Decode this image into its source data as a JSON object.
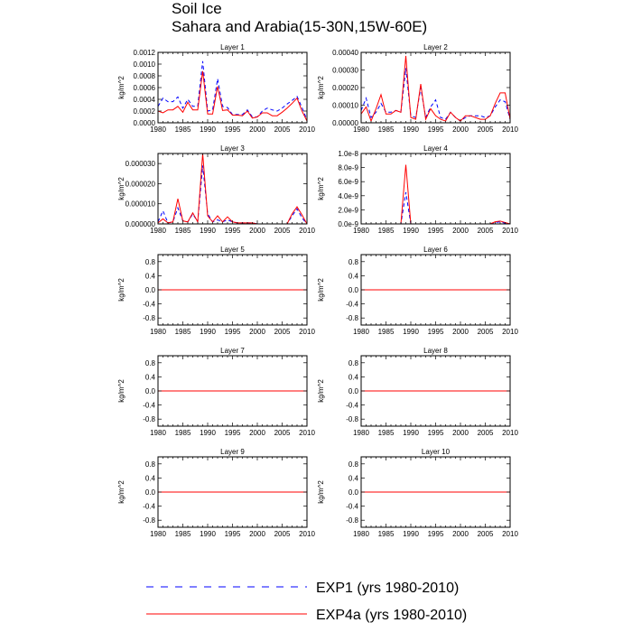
{
  "figure": {
    "title_line1": "Soil Ice",
    "title_line2": "Sahara and Arabia(15-30N,15W-60E)"
  },
  "legend": {
    "items": [
      {
        "label": "EXP1 (yrs 1980-2010)",
        "color": "#0000ff",
        "dash": "dashed"
      },
      {
        "label": "EXP4a (yrs 1980-2010)",
        "color": "#ff0000",
        "dash": "solid"
      }
    ]
  },
  "chart_data": [
    {
      "type": "line",
      "title": "Layer 1",
      "ylabel": "kg/m^2",
      "xlim": [
        1980,
        2010
      ],
      "ylim": [
        0,
        0.0012
      ],
      "xticks": [
        "1980",
        "1985",
        "1990",
        "1995",
        "2000",
        "2005",
        "2010"
      ],
      "yticks": [
        {
          "v": 0,
          "t": "0.0000"
        },
        {
          "v": 0.0002,
          "t": "0.0002"
        },
        {
          "v": 0.0004,
          "t": "0.0004"
        },
        {
          "v": 0.0006,
          "t": "0.0006"
        },
        {
          "v": 0.0008,
          "t": "0.0008"
        },
        {
          "v": 0.001,
          "t": "0.0010"
        },
        {
          "v": 0.0012,
          "t": "0.0012"
        }
      ],
      "x": [
        1980,
        1981,
        1982,
        1983,
        1984,
        1985,
        1986,
        1987,
        1988,
        1989,
        1990,
        1991,
        1992,
        1993,
        1994,
        1995,
        1996,
        1997,
        1998,
        1999,
        2000,
        2001,
        2002,
        2003,
        2004,
        2005,
        2006,
        2007,
        2008,
        2009,
        2010
      ],
      "series": [
        {
          "name": "EXP1 (yrs 1980-2010)",
          "values": [
            0.00028,
            0.00042,
            0.00036,
            0.00036,
            0.00044,
            0.00025,
            0.0004,
            0.00028,
            0.00028,
            0.00105,
            0.0002,
            0.00022,
            0.00075,
            0.00028,
            0.00026,
            0.00014,
            0.00014,
            0.00014,
            0.00022,
            0.0001,
            0.0001,
            0.0002,
            0.00025,
            0.00022,
            0.0002,
            0.00025,
            0.00032,
            0.00038,
            0.00045,
            0.00026,
            5e-05
          ]
        },
        {
          "name": "EXP4a (yrs 1980-2010)",
          "values": [
            0.0002,
            0.00017,
            0.00022,
            0.00022,
            0.00028,
            0.00018,
            0.00035,
            0.00022,
            0.00022,
            0.00088,
            0.00015,
            0.00015,
            0.00062,
            0.00021,
            0.00022,
            0.00013,
            0.00013,
            0.00012,
            0.0002,
            8e-05,
            0.0001,
            0.00017,
            0.00017,
            0.00012,
            0.00012,
            0.00018,
            0.00025,
            0.00033,
            0.00042,
            0.0002,
            3e-05
          ]
        }
      ]
    },
    {
      "type": "line",
      "title": "Layer 2",
      "ylabel": "kg/m^2",
      "xlim": [
        1980,
        2010
      ],
      "ylim": [
        0,
        0.0004
      ],
      "xticks": [
        "1980",
        "1985",
        "1990",
        "1995",
        "2000",
        "2005",
        "2010"
      ],
      "yticks": [
        {
          "v": 0,
          "t": "0.00000"
        },
        {
          "v": 0.0001,
          "t": "0.00010"
        },
        {
          "v": 0.0002,
          "t": "0.00020"
        },
        {
          "v": 0.0003,
          "t": "0.00030"
        },
        {
          "v": 0.0004,
          "t": "0.00040"
        }
      ],
      "x": [
        1980,
        1981,
        1982,
        1983,
        1984,
        1985,
        1986,
        1987,
        1988,
        1989,
        1990,
        1991,
        1992,
        1993,
        1994,
        1995,
        1996,
        1997,
        1998,
        1999,
        2000,
        2001,
        2002,
        2003,
        2004,
        2005,
        2006,
        2007,
        2008,
        2009,
        2010
      ],
      "series": [
        {
          "name": "EXP1 (yrs 1980-2010)",
          "values": [
            7e-05,
            0.00014,
            3e-05,
            6e-05,
            0.00011,
            6e-05,
            6e-05,
            7e-05,
            6e-05,
            0.00031,
            4e-05,
            3e-05,
            0.0002,
            3e-05,
            9e-05,
            0.00013,
            3e-05,
            2e-05,
            6e-05,
            3e-05,
            1e-05,
            3e-05,
            4e-05,
            4e-05,
            4e-05,
            3e-05,
            4e-05,
            9e-05,
            0.00013,
            0.00012,
            2e-05
          ]
        },
        {
          "name": "EXP4a (yrs 1980-2010)",
          "values": [
            5e-05,
            9e-05,
            1e-05,
            8e-05,
            0.00016,
            5e-05,
            5e-05,
            7e-05,
            6e-05,
            0.00038,
            3e-05,
            2e-05,
            0.00022,
            2e-05,
            8e-05,
            4e-05,
            2e-05,
            1e-05,
            6e-05,
            3e-05,
            1e-05,
            4e-05,
            4e-05,
            3e-05,
            2e-05,
            2e-05,
            4e-05,
            0.00011,
            0.00017,
            0.00017,
            2e-05
          ]
        }
      ]
    },
    {
      "type": "line",
      "title": "Layer 3",
      "ylabel": "kg/m^2",
      "xlim": [
        1980,
        2010
      ],
      "ylim": [
        0,
        3.5e-05
      ],
      "xticks": [
        "1980",
        "1985",
        "1990",
        "1995",
        "2000",
        "2005",
        "2010"
      ],
      "yticks": [
        {
          "v": 0,
          "t": "0.000000"
        },
        {
          "v": 1e-05,
          "t": "0.000010"
        },
        {
          "v": 2e-05,
          "t": "0.000020"
        },
        {
          "v": 3e-05,
          "t": "0.000030"
        }
      ],
      "x": [
        1980,
        1981,
        1982,
        1983,
        1984,
        1985,
        1986,
        1987,
        1988,
        1989,
        1990,
        1991,
        1992,
        1993,
        1994,
        1995,
        1996,
        1997,
        1998,
        1999,
        2000,
        2001,
        2002,
        2003,
        2004,
        2005,
        2006,
        2007,
        2008,
        2009,
        2010
      ],
      "series": [
        {
          "name": "EXP1 (yrs 1980-2010)",
          "values": [
            1e-06,
            6.5e-06,
            5e-07,
            1e-06,
            8e-06,
            1.5e-06,
            1e-06,
            5e-06,
            1e-06,
            2.9e-05,
            5e-06,
            1e-06,
            2e-06,
            1e-06,
            2e-06,
            1e-06,
            5e-07,
            5e-07,
            5e-07,
            5e-07,
            0,
            0,
            0,
            0,
            0,
            0,
            0,
            4e-06,
            7.5e-06,
            3e-06,
            0
          ]
        },
        {
          "name": "EXP4a (yrs 1980-2010)",
          "values": [
            5e-07,
            2.5e-06,
            5e-07,
            1e-06,
            1.25e-05,
            1.5e-06,
            1e-06,
            5.5e-06,
            1e-06,
            3.5e-05,
            4e-06,
            1e-06,
            4e-06,
            1e-06,
            3.5e-06,
            1e-06,
            5e-07,
            5e-07,
            5e-07,
            5e-07,
            0,
            0,
            0,
            0,
            0,
            0,
            0,
            5e-06,
            8.5e-06,
            4.5e-06,
            0
          ]
        }
      ]
    },
    {
      "type": "line",
      "title": "Layer 4",
      "ylabel": "kg/m^2",
      "xlim": [
        1980,
        2010
      ],
      "ylim": [
        0,
        1e-08
      ],
      "xticks": [
        "1980",
        "1985",
        "1990",
        "1995",
        "2000",
        "2005",
        "2010"
      ],
      "yticks": [
        {
          "v": 0,
          "t": "0.0e-9"
        },
        {
          "v": 2e-09,
          "t": "2.0e-9"
        },
        {
          "v": 4e-09,
          "t": "4.0e-9"
        },
        {
          "v": 6e-09,
          "t": "6.0e-9"
        },
        {
          "v": 8e-09,
          "t": "8.0e-9"
        },
        {
          "v": 1e-08,
          "t": "1.0e-8"
        }
      ],
      "x": [
        1980,
        1981,
        1982,
        1983,
        1984,
        1985,
        1986,
        1987,
        1988,
        1989,
        1990,
        1991,
        1992,
        1993,
        1994,
        1995,
        1996,
        1997,
        1998,
        1999,
        2000,
        2001,
        2002,
        2003,
        2004,
        2005,
        2006,
        2007,
        2008,
        2009,
        2010
      ],
      "series": [
        {
          "name": "EXP1 (yrs 1980-2010)",
          "values": [
            0,
            0,
            0,
            0,
            0,
            0,
            0,
            0,
            0,
            4.5e-09,
            0,
            0,
            0,
            0,
            0,
            0,
            0,
            0,
            0,
            0,
            0,
            0,
            0,
            0,
            0,
            0,
            0,
            2e-10,
            3e-10,
            1e-10,
            0
          ]
        },
        {
          "name": "EXP4a (yrs 1980-2010)",
          "values": [
            0,
            0,
            0,
            0,
            0,
            0,
            0,
            0,
            0,
            8.4e-09,
            0,
            0,
            0,
            0,
            0,
            0,
            0,
            0,
            0,
            0,
            0,
            0,
            0,
            0,
            0,
            0,
            0,
            3e-10,
            4e-10,
            2e-10,
            0
          ]
        }
      ]
    },
    {
      "type": "line",
      "title": "Layer 5",
      "ylabel": "kg/m^2",
      "xlim": [
        1980,
        2010
      ],
      "ylim": [
        -1,
        1
      ],
      "xticks": [
        "1980",
        "1985",
        "1990",
        "1995",
        "2000",
        "2005",
        "2010"
      ],
      "yticks": [
        {
          "v": -0.8,
          "t": "-0.8"
        },
        {
          "v": -0.4,
          "t": "-0.4"
        },
        {
          "v": 0,
          "t": "0.0"
        },
        {
          "v": 0.4,
          "t": "0.4"
        },
        {
          "v": 0.8,
          "t": "0.8"
        }
      ],
      "x": [
        1980,
        2010
      ],
      "series": [
        {
          "name": "EXP1 (yrs 1980-2010)",
          "values": [
            0,
            0
          ]
        },
        {
          "name": "EXP4a (yrs 1980-2010)",
          "values": [
            0,
            0
          ]
        }
      ]
    },
    {
      "type": "line",
      "title": "Layer 6",
      "ylabel": "kg/m^2",
      "xlim": [
        1980,
        2010
      ],
      "ylim": [
        -1,
        1
      ],
      "xticks": [
        "1980",
        "1985",
        "1990",
        "1995",
        "2000",
        "2005",
        "2010"
      ],
      "yticks": [
        {
          "v": -0.8,
          "t": "-0.8"
        },
        {
          "v": -0.4,
          "t": "-0.4"
        },
        {
          "v": 0,
          "t": "0.0"
        },
        {
          "v": 0.4,
          "t": "0.4"
        },
        {
          "v": 0.8,
          "t": "0.8"
        }
      ],
      "x": [
        1980,
        2010
      ],
      "series": [
        {
          "name": "EXP1 (yrs 1980-2010)",
          "values": [
            0,
            0
          ]
        },
        {
          "name": "EXP4a (yrs 1980-2010)",
          "values": [
            0,
            0
          ]
        }
      ]
    },
    {
      "type": "line",
      "title": "Layer 7",
      "ylabel": "kg/m^2",
      "xlim": [
        1980,
        2010
      ],
      "ylim": [
        -1,
        1
      ],
      "xticks": [
        "1980",
        "1985",
        "1990",
        "1995",
        "2000",
        "2005",
        "2010"
      ],
      "yticks": [
        {
          "v": -0.8,
          "t": "-0.8"
        },
        {
          "v": -0.4,
          "t": "-0.4"
        },
        {
          "v": 0,
          "t": "0.0"
        },
        {
          "v": 0.4,
          "t": "0.4"
        },
        {
          "v": 0.8,
          "t": "0.8"
        }
      ],
      "x": [
        1980,
        2010
      ],
      "series": [
        {
          "name": "EXP1 (yrs 1980-2010)",
          "values": [
            0,
            0
          ]
        },
        {
          "name": "EXP4a (yrs 1980-2010)",
          "values": [
            0,
            0
          ]
        }
      ]
    },
    {
      "type": "line",
      "title": "Layer 8",
      "ylabel": "kg/m^2",
      "xlim": [
        1980,
        2010
      ],
      "ylim": [
        -1,
        1
      ],
      "xticks": [
        "1980",
        "1985",
        "1990",
        "1995",
        "2000",
        "2005",
        "2010"
      ],
      "yticks": [
        {
          "v": -0.8,
          "t": "-0.8"
        },
        {
          "v": -0.4,
          "t": "-0.4"
        },
        {
          "v": 0,
          "t": "0.0"
        },
        {
          "v": 0.4,
          "t": "0.4"
        },
        {
          "v": 0.8,
          "t": "0.8"
        }
      ],
      "x": [
        1980,
        2010
      ],
      "series": [
        {
          "name": "EXP1 (yrs 1980-2010)",
          "values": [
            0,
            0
          ]
        },
        {
          "name": "EXP4a (yrs 1980-2010)",
          "values": [
            0,
            0
          ]
        }
      ]
    },
    {
      "type": "line",
      "title": "Layer 9",
      "ylabel": "kg/m^2",
      "xlim": [
        1980,
        2010
      ],
      "ylim": [
        -1,
        1
      ],
      "xticks": [
        "1980",
        "1985",
        "1990",
        "1995",
        "2000",
        "2005",
        "2010"
      ],
      "yticks": [
        {
          "v": -0.8,
          "t": "-0.8"
        },
        {
          "v": -0.4,
          "t": "-0.4"
        },
        {
          "v": 0,
          "t": "0.0"
        },
        {
          "v": 0.4,
          "t": "0.4"
        },
        {
          "v": 0.8,
          "t": "0.8"
        }
      ],
      "x": [
        1980,
        2010
      ],
      "series": [
        {
          "name": "EXP1 (yrs 1980-2010)",
          "values": [
            0,
            0
          ]
        },
        {
          "name": "EXP4a (yrs 1980-2010)",
          "values": [
            0,
            0
          ]
        }
      ]
    },
    {
      "type": "line",
      "title": "Layer 10",
      "ylabel": "kg/m^2",
      "xlim": [
        1980,
        2010
      ],
      "ylim": [
        -1,
        1
      ],
      "xticks": [
        "1980",
        "1985",
        "1990",
        "1995",
        "2000",
        "2005",
        "2010"
      ],
      "yticks": [
        {
          "v": -0.8,
          "t": "-0.8"
        },
        {
          "v": -0.4,
          "t": "-0.4"
        },
        {
          "v": 0,
          "t": "0.0"
        },
        {
          "v": 0.4,
          "t": "0.4"
        },
        {
          "v": 0.8,
          "t": "0.8"
        }
      ],
      "x": [
        1980,
        2010
      ],
      "series": [
        {
          "name": "EXP1 (yrs 1980-2010)",
          "values": [
            0,
            0
          ]
        },
        {
          "name": "EXP4a (yrs 1980-2010)",
          "values": [
            0,
            0
          ]
        }
      ]
    }
  ]
}
